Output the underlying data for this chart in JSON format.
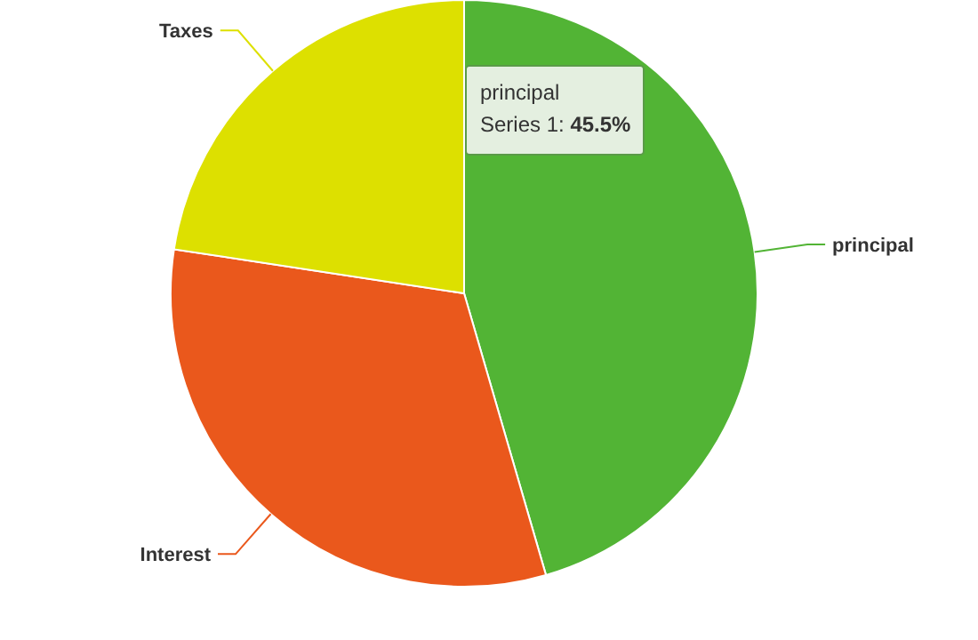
{
  "chart_data": {
    "type": "pie",
    "categories": [
      "principal",
      "Interest",
      "Taxes"
    ],
    "values": [
      45.5,
      31.9,
      22.6
    ],
    "colors": [
      "#52b435",
      "#ea581c",
      "#dde000"
    ],
    "annotations": [
      "principal",
      "Series 1: 45.5%"
    ]
  }
}
